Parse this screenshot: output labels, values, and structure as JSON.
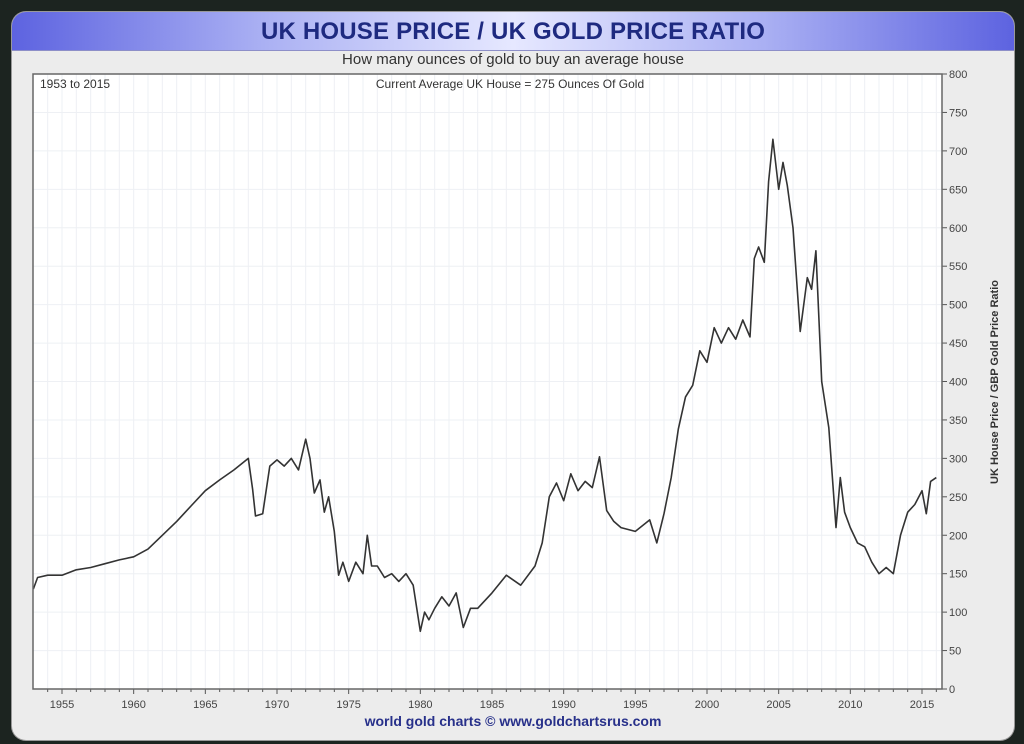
{
  "header": {
    "title": "UK HOUSE PRICE / UK GOLD PRICE RATIO",
    "subtitle": "How many ounces of gold to buy an average house"
  },
  "plot": {
    "date_range_label": "1953 to 2015",
    "current_note": "Current Average UK House = 275 Ounces Of Gold",
    "y_axis_title": "UK House Price / GBP Gold Price Ratio",
    "line_color": "#333333"
  },
  "footer": {
    "credit": "world gold charts © www.goldchartsrus.com"
  },
  "colors": {
    "title_text": "#1e2a80",
    "title_bar_edge": "#5d63e0",
    "footer_text": "#27308a",
    "frame_bg": "#ececec",
    "plot_bg": "#ffffff"
  },
  "chart_data": {
    "type": "line",
    "title": "UK HOUSE PRICE / UK GOLD PRICE RATIO",
    "subtitle": "How many ounces of gold to buy an average house",
    "annotations": [
      "1953 to 2015",
      "Current Average UK House = 275 Ounces Of Gold"
    ],
    "xlabel": "",
    "ylabel": "UK House Price / GBP Gold Price Ratio",
    "xlim": [
      1953,
      2016.5
    ],
    "ylim": [
      0,
      800
    ],
    "x_ticks": [
      1955,
      1960,
      1965,
      1970,
      1975,
      1980,
      1985,
      1990,
      1995,
      2000,
      2005,
      2010,
      2015
    ],
    "y_ticks": [
      0,
      50,
      100,
      150,
      200,
      250,
      300,
      350,
      400,
      450,
      500,
      550,
      600,
      650,
      700,
      750,
      800
    ],
    "y_axis_position": "right",
    "grid": true,
    "legend": null,
    "series": [
      {
        "name": "UK House Price / GBP Gold Price Ratio",
        "x": [
          1953.0,
          1953.3,
          1954.0,
          1955.0,
          1956.0,
          1957.0,
          1958.0,
          1959.0,
          1960.0,
          1961.0,
          1962.0,
          1963.0,
          1964.0,
          1965.0,
          1966.0,
          1967.0,
          1968.0,
          1968.3,
          1968.5,
          1969.0,
          1969.5,
          1970.0,
          1970.5,
          1971.0,
          1971.5,
          1972.0,
          1972.3,
          1972.6,
          1973.0,
          1973.3,
          1973.6,
          1974.0,
          1974.3,
          1974.6,
          1975.0,
          1975.5,
          1976.0,
          1976.3,
          1976.6,
          1977.0,
          1977.5,
          1978.0,
          1978.5,
          1979.0,
          1979.5,
          1980.0,
          1980.3,
          1980.6,
          1981.0,
          1981.5,
          1982.0,
          1982.5,
          1983.0,
          1983.5,
          1984.0,
          1985.0,
          1986.0,
          1987.0,
          1988.0,
          1988.5,
          1989.0,
          1989.5,
          1990.0,
          1990.5,
          1991.0,
          1991.5,
          1992.0,
          1992.5,
          1993.0,
          1993.5,
          1994.0,
          1995.0,
          1996.0,
          1996.5,
          1997.0,
          1997.5,
          1998.0,
          1998.5,
          1999.0,
          1999.5,
          2000.0,
          2000.5,
          2001.0,
          2001.5,
          2002.0,
          2002.5,
          2003.0,
          2003.3,
          2003.6,
          2004.0,
          2004.3,
          2004.6,
          2005.0,
          2005.3,
          2005.6,
          2006.0,
          2006.5,
          2007.0,
          2007.3,
          2007.6,
          2008.0,
          2008.5,
          2009.0,
          2009.3,
          2009.6,
          2010.0,
          2010.5,
          2011.0,
          2011.5,
          2012.0,
          2012.5,
          2013.0,
          2013.5,
          2014.0,
          2014.5,
          2015.0,
          2015.3,
          2015.6,
          2016.0
        ],
        "values": [
          130,
          145,
          148,
          148,
          155,
          158,
          163,
          168,
          172,
          182,
          200,
          218,
          238,
          258,
          272,
          285,
          300,
          260,
          225,
          228,
          290,
          298,
          290,
          300,
          285,
          325,
          300,
          255,
          272,
          230,
          250,
          205,
          148,
          165,
          140,
          165,
          150,
          200,
          160,
          160,
          145,
          150,
          140,
          150,
          135,
          75,
          100,
          90,
          105,
          120,
          108,
          125,
          80,
          105,
          105,
          125,
          148,
          135,
          160,
          190,
          250,
          268,
          245,
          280,
          258,
          270,
          262,
          302,
          232,
          218,
          210,
          205,
          220,
          190,
          228,
          275,
          338,
          380,
          395,
          440,
          425,
          470,
          450,
          470,
          455,
          480,
          458,
          560,
          575,
          555,
          660,
          715,
          650,
          685,
          655,
          600,
          465,
          535,
          520,
          570,
          400,
          340,
          210,
          275,
          230,
          210,
          190,
          185,
          165,
          150,
          158,
          150,
          200,
          230,
          240,
          258,
          228,
          270,
          275
        ]
      }
    ]
  }
}
